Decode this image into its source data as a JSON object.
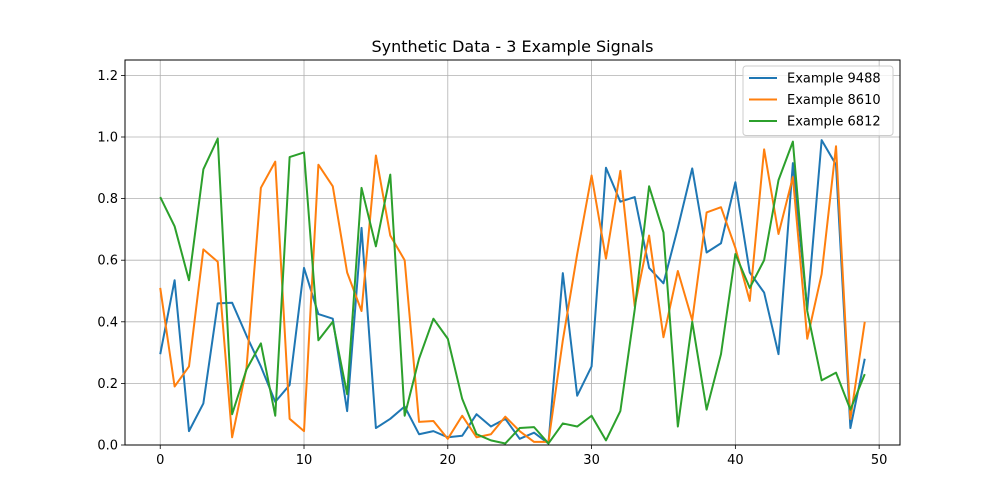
{
  "chart_data": {
    "type": "line",
    "title": "Synthetic Data - 3 Example Signals",
    "xlabel": "",
    "ylabel": "",
    "xlim": [
      -2.45,
      51.45
    ],
    "ylim": [
      0.0,
      1.25
    ],
    "xticks": [
      0,
      10,
      20,
      30,
      40,
      50
    ],
    "yticks": [
      0.0,
      0.2,
      0.4,
      0.6,
      0.8,
      1.0,
      1.2
    ],
    "xtick_labels": [
      "0",
      "10",
      "20",
      "30",
      "40",
      "50"
    ],
    "ytick_labels": [
      "0.0",
      "0.2",
      "0.4",
      "0.6",
      "0.8",
      "1.0",
      "1.2"
    ],
    "grid": true,
    "legend_position": "top-right",
    "x": [
      0,
      1,
      2,
      3,
      4,
      5,
      6,
      7,
      8,
      9,
      10,
      11,
      12,
      13,
      14,
      15,
      16,
      17,
      18,
      19,
      20,
      21,
      22,
      23,
      24,
      25,
      26,
      27,
      28,
      29,
      30,
      31,
      32,
      33,
      34,
      35,
      36,
      37,
      38,
      39,
      40,
      41,
      42,
      43,
      44,
      45,
      46,
      47,
      48,
      49
    ],
    "series": [
      {
        "name": "Example 9488",
        "color": "#1f77b4",
        "values": [
          0.295,
          0.535,
          0.045,
          0.135,
          0.46,
          0.462,
          0.355,
          0.255,
          0.14,
          0.195,
          0.575,
          0.425,
          0.41,
          0.11,
          0.705,
          0.055,
          0.085,
          0.125,
          0.035,
          0.045,
          0.025,
          0.03,
          0.1,
          0.06,
          0.085,
          0.02,
          0.04,
          0.005,
          0.558,
          0.16,
          0.255,
          0.9,
          0.79,
          0.805,
          0.575,
          0.525,
          0.705,
          0.898,
          0.625,
          0.655,
          0.853,
          0.56,
          0.495,
          0.295,
          0.915,
          0.44,
          0.99,
          0.91,
          0.055,
          0.28
        ]
      },
      {
        "name": "Example 8610",
        "color": "#ff7f0e",
        "values": [
          0.51,
          0.19,
          0.255,
          0.635,
          0.595,
          0.025,
          0.25,
          0.835,
          0.92,
          0.085,
          0.045,
          0.91,
          0.84,
          0.56,
          0.435,
          0.94,
          0.68,
          0.6,
          0.075,
          0.078,
          0.02,
          0.095,
          0.025,
          0.035,
          0.092,
          0.045,
          0.01,
          0.01,
          0.34,
          0.62,
          0.875,
          0.605,
          0.89,
          0.45,
          0.68,
          0.35,
          0.565,
          0.405,
          0.755,
          0.772,
          0.64,
          0.468,
          0.96,
          0.685,
          0.87,
          0.345,
          0.555,
          0.97,
          0.085,
          0.4
        ]
      },
      {
        "name": "Example 6812",
        "color": "#2ca02c",
        "values": [
          0.805,
          0.71,
          0.535,
          0.895,
          0.995,
          0.1,
          0.245,
          0.33,
          0.095,
          0.935,
          0.95,
          0.34,
          0.4,
          0.165,
          0.835,
          0.645,
          0.878,
          0.095,
          0.28,
          0.41,
          0.345,
          0.15,
          0.035,
          0.015,
          0.005,
          0.055,
          0.058,
          0.005,
          0.07,
          0.06,
          0.095,
          0.015,
          0.11,
          0.44,
          0.84,
          0.69,
          0.06,
          0.4,
          0.115,
          0.295,
          0.62,
          0.51,
          0.6,
          0.86,
          0.985,
          0.435,
          0.21,
          0.235,
          0.115,
          0.23
        ]
      }
    ]
  }
}
